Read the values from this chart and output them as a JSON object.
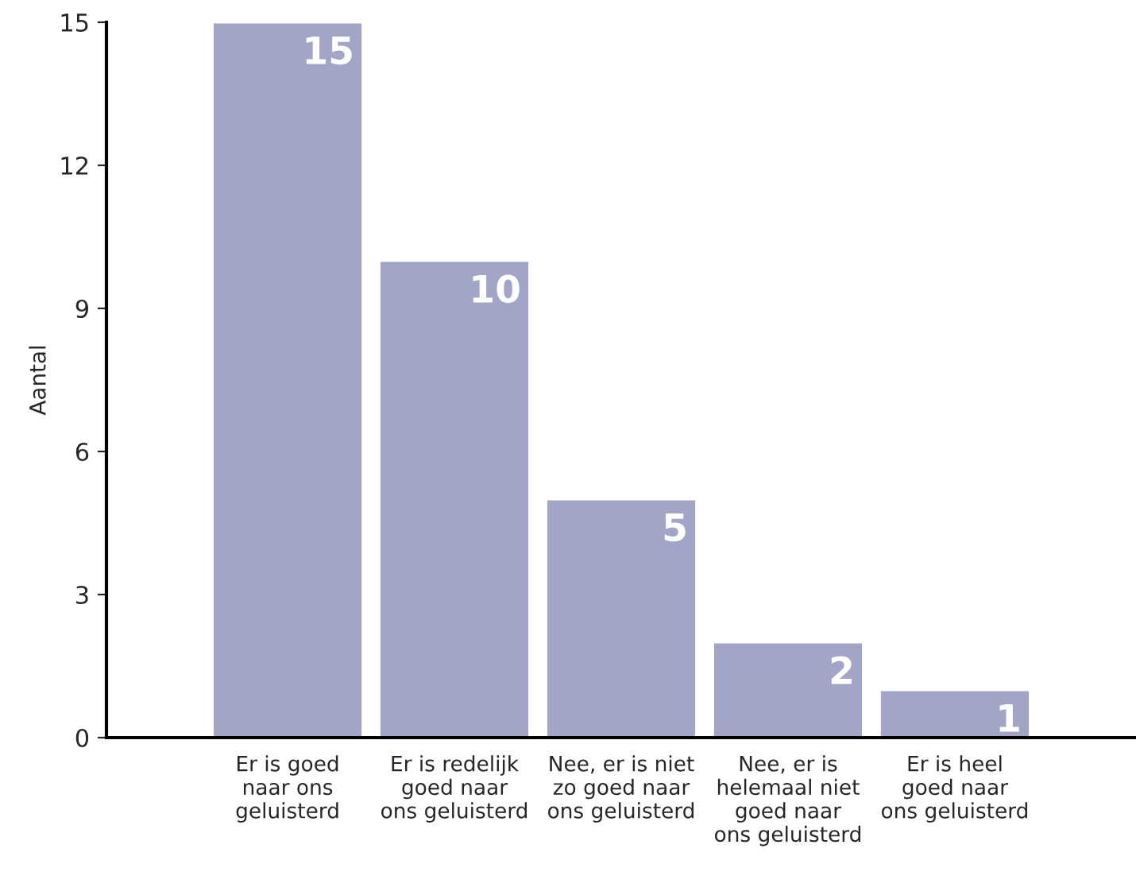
{
  "chart_data": {
    "type": "bar",
    "ylabel": "Aantal",
    "categories": [
      "Er is goed\nnaar ons\ngeluisterd",
      "Er is redelijk\ngoed naar\nons geluisterd",
      "Nee, er is niet\nzo goed naar\nons geluisterd",
      "Nee, er is\nhelemaal niet\ngoed naar\nons geluisterd",
      "Er is heel\ngoed naar\nons geluisterd"
    ],
    "values": [
      15,
      10,
      5,
      2,
      1
    ],
    "color": "#a3a5c7",
    "ylim": [
      0,
      15
    ],
    "yticks": [
      0,
      3,
      6,
      9,
      12,
      15
    ],
    "grid": false,
    "data_labels": true
  }
}
